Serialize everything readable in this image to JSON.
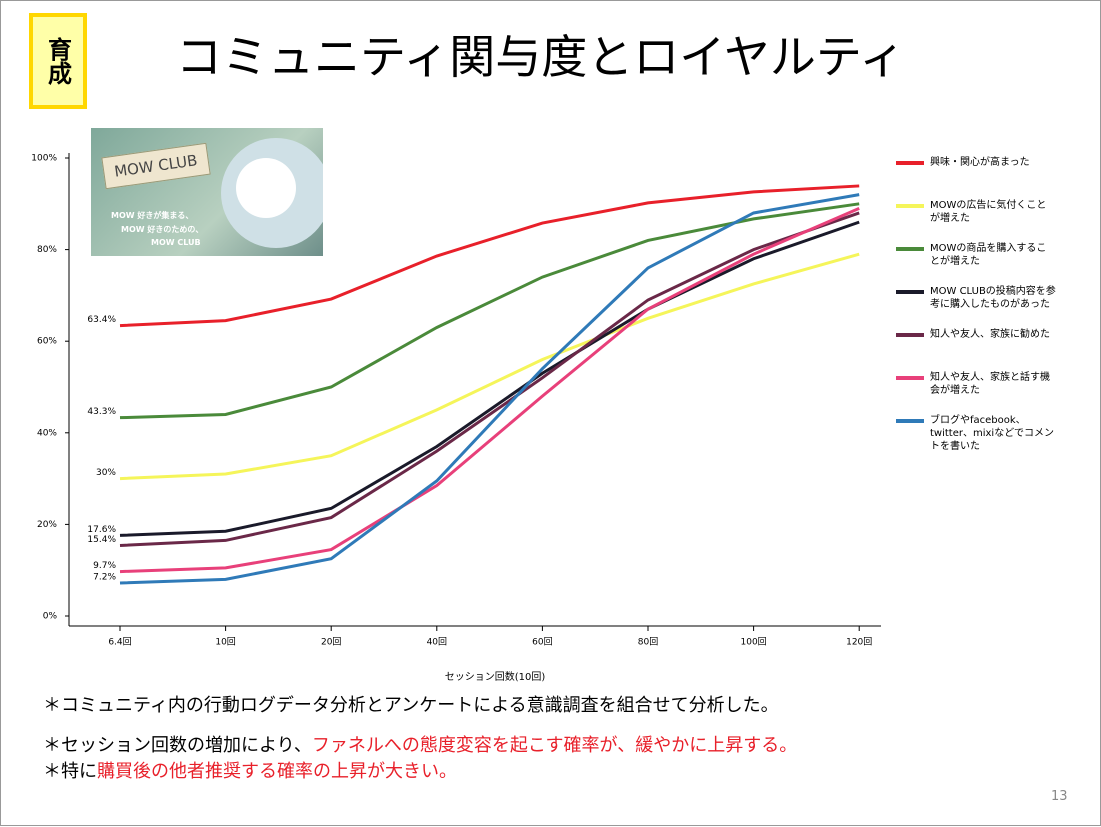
{
  "badge": "育成",
  "title": "コミュニティ関与度とロイヤルティ",
  "image": {
    "logo": "MOW CLUB",
    "taglines": [
      "MOW 好きが集まる、",
      "MOW 好きのための、",
      "MOW CLUB"
    ]
  },
  "chart_data": {
    "type": "line",
    "x_label": "セッション回数(10回)",
    "categories": [
      "6.4回",
      "10回",
      "20回",
      "40回",
      "60回",
      "80回",
      "100回",
      "120回"
    ],
    "ylim": [
      0,
      100
    ],
    "yticks": [
      {
        "value": 0,
        "label": "0%"
      },
      {
        "value": 20,
        "label": "20%"
      },
      {
        "value": 40,
        "label": "40%"
      },
      {
        "value": 60,
        "label": "60%"
      },
      {
        "value": 80,
        "label": "80%"
      },
      {
        "value": 100,
        "label": "100%"
      }
    ],
    "series": [
      {
        "name": "興味・関心が高まった",
        "color": "#e8202a",
        "values": [
          63.4,
          64.5,
          69.2,
          78.6,
          85.8,
          90.2,
          92.6,
          93.9
        ],
        "value_labels": [
          "63.4%",
          null,
          null,
          null,
          null,
          null,
          null,
          null
        ]
      },
      {
        "name": "MOWの広告に気付くことが増えた",
        "color": "#f5f55a",
        "values": [
          30,
          31,
          35,
          45,
          56,
          65,
          72.5,
          79
        ],
        "value_labels": [
          "30%",
          null,
          null,
          null,
          null,
          null,
          null,
          null
        ]
      },
      {
        "name": "MOWの商品を購入することが増えた",
        "color": "#4a8a3a",
        "values": [
          43.3,
          44,
          50,
          63,
          74,
          82,
          86.7,
          90
        ],
        "value_labels": [
          "43.3%",
          null,
          null,
          null,
          null,
          null,
          null,
          null
        ]
      },
      {
        "name": "MOW CLUBの投稿内容を参考に購入したものがあった",
        "color": "#1a1a2a",
        "values": [
          17.6,
          18.5,
          23.5,
          37,
          53,
          67,
          78,
          86
        ],
        "value_labels": [
          "17.6%",
          null,
          null,
          null,
          null,
          null,
          null,
          null
        ]
      },
      {
        "name": "知人や友人、家族に勧めた",
        "color": "#6a2848",
        "values": [
          15.4,
          16.5,
          21.5,
          36,
          52,
          69,
          80,
          88
        ],
        "value_labels": [
          "15.4%",
          null,
          null,
          null,
          null,
          null,
          null,
          null
        ]
      },
      {
        "name": "知人や友人、家族と話す機会が増えた",
        "color": "#e8407a",
        "values": [
          9.7,
          10.5,
          14.5,
          28.5,
          48,
          67,
          79,
          89
        ],
        "value_labels": [
          "9.7%",
          null,
          null,
          null,
          null,
          null,
          null,
          null
        ]
      },
      {
        "name": "ブログやfacebook、twitter、mixiなどでコメントを書いた",
        "color": "#2f7ab8",
        "values": [
          7.2,
          8,
          12.5,
          29.5,
          54,
          76,
          88,
          92
        ],
        "value_labels": [
          "7.2%",
          null,
          null,
          null,
          null,
          null,
          null,
          null
        ]
      }
    ]
  },
  "notes": [
    [
      {
        "text": "＊コミュニティ内の行動ログデータ分析とアンケートによる意識調査を組合せて分析した。",
        "color": "#000000"
      }
    ],
    [
      {
        "text": "＊セッション回数の増加により、",
        "color": "#000000"
      },
      {
        "text": "ファネルへの態度変容を起こす確率が、緩やかに上昇する。",
        "color": "#e8202a"
      }
    ],
    [
      {
        "text": "＊特に",
        "color": "#000000"
      },
      {
        "text": "購買後の他者推奨する確率の上昇が大きい。",
        "color": "#e8202a"
      }
    ]
  ],
  "page_number": "13"
}
